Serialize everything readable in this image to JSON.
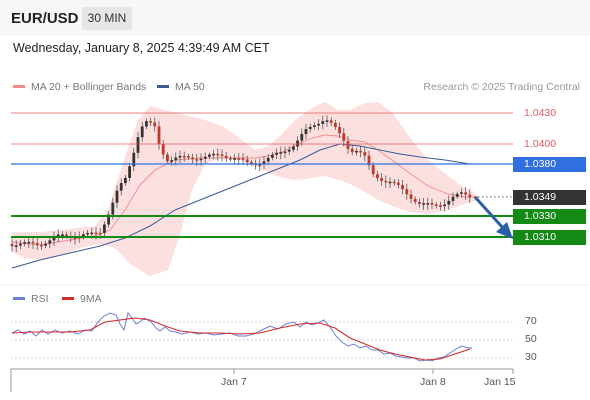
{
  "header": {
    "symbol": "EUR/USD",
    "timeframe": "30 MIN"
  },
  "datetime": "Wednesday, January 8, 2025 4:39:49 AM CET",
  "legend": {
    "bollinger": "MA 20 + Bollinger Bands",
    "ma50": "MA 50"
  },
  "credit": "Research © 2025 Trading Central",
  "colors": {
    "bollinger": "#f28b8b",
    "ma50": "#3a5a9a",
    "support": "#138a13",
    "pivot": "#2f6fe0",
    "resistance": "#e05a5a",
    "rsi": "#6b7fd6",
    "rsi_ma": "#d42a2a"
  },
  "levels": [
    {
      "price": "1.0430",
      "kind": "resistance"
    },
    {
      "price": "1.0400",
      "kind": "resistance"
    },
    {
      "price": "1.0380",
      "kind": "pivot"
    },
    {
      "price": "1.0349",
      "kind": "last"
    },
    {
      "price": "1.0330",
      "kind": "support"
    },
    {
      "price": "1.0310",
      "kind": "support"
    }
  ],
  "rsi": {
    "legend_rsi": "RSI",
    "legend_ma": "9MA",
    "ticks": [
      "70",
      "50",
      "30"
    ]
  },
  "xaxis": [
    "Jan 7",
    "Jan 8",
    "Jan 15"
  ]
}
